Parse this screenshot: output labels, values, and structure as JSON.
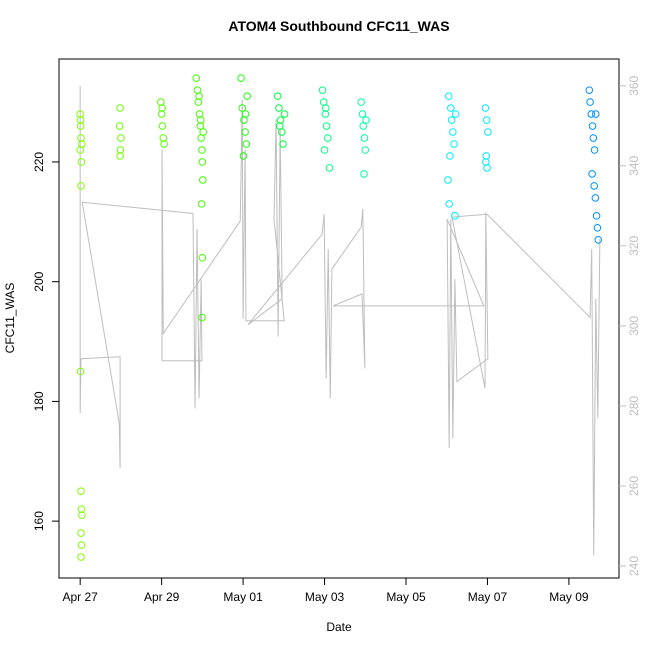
{
  "chart_data": {
    "type": "scatter",
    "title": "ATOM4 Southbound CFC11_WAS",
    "x_label": "Date",
    "y_label": "CFC11_WAS",
    "xlim": [
      -0.52,
      13.23
    ],
    "ylim": [
      150.5,
      237.2
    ],
    "y2lim": [
      237,
      366.7
    ],
    "xticks": [
      {
        "value": 0,
        "label": "Apr 27"
      },
      {
        "value": 2,
        "label": "Apr 29"
      },
      {
        "value": 4,
        "label": "May 01"
      },
      {
        "value": 6,
        "label": "May 03"
      },
      {
        "value": 8,
        "label": "May 05"
      },
      {
        "value": 10,
        "label": "May 07"
      },
      {
        "value": 12,
        "label": "May 09"
      }
    ],
    "yticks": [
      160,
      180,
      200,
      220
    ],
    "y2ticks": [
      240,
      260,
      280,
      300,
      320,
      340,
      360
    ],
    "y2_color": "#bebebe",
    "series": [
      {
        "type": "line",
        "axis": "y2",
        "color": "#bebebe",
        "x": [
          0,
          0,
          0.02,
          0.98,
          0.98,
          0.96,
          0.05,
          2.77,
          2.82,
          2.87,
          2.92,
          2.97,
          2.99,
          2.01,
          2.01,
          2.04,
          3.93,
          3.98,
          4.0,
          4.05,
          4.07,
          5.01,
          4.76,
          4.81,
          4.86,
          4.91,
          4.96,
          4.12,
          5.94,
          5.99,
          6.04,
          6.09,
          6.14,
          6.18,
          6.9,
          6.94,
          6.99,
          6.92,
          6.21,
          9.91,
          9.01,
          9.06,
          9.1,
          9.15,
          9.2,
          9.25,
          10.01,
          9.96,
          9.94,
          9.13,
          9.99,
          12.52,
          12.56,
          12.61,
          12.66,
          12.71,
          12.76
        ],
        "values": [
          360,
          278.2,
          291.8,
          292.3,
          264.5,
          275.6,
          330.9,
          328.1,
          279.4,
          324.2,
          281.9,
          311.7,
          291.3,
          291.3,
          344.1,
          298.1,
          326.2,
          356.5,
          301.8,
          344.1,
          301.3,
          301.3,
          326.7,
          351.5,
          297.3,
          349.1,
          306.8,
          300.3,
          322.9,
          327.9,
          286.9,
          319.2,
          281.9,
          314.2,
          324.7,
          329.2,
          289.4,
          308,
          305,
          305,
          326.7,
          269.5,
          326.7,
          271.9,
          311.7,
          286.1,
          291.8,
          328.4,
          284.4,
          327.2,
          327.9,
          302.1,
          319.2,
          242.6,
          306.8,
          276.9,
          321.7
        ]
      },
      {
        "type": "scatter",
        "x": [
          0,
          0.01,
          0.02,
          0,
          0.03,
          0.02,
          0.01,
          0.02,
          0.03,
          0.04,
          0.02,
          0.03,
          0.02,
          0.04,
          0.01,
          0.98,
          0.97,
          1.0,
          0.99,
          0.98,
          1.98,
          2.0,
          2.02,
          2.04,
          2.06,
          2.01,
          2.85,
          2.88,
          2.9,
          2.93,
          2.95,
          2.97,
          2.99,
          3.0,
          3.01,
          2.98,
          3.0,
          2.99,
          2.92,
          2.96,
          3.02,
          3.95,
          4.1,
          3.98,
          4.02,
          4.05,
          4.08,
          4.01,
          4.06,
          4.85,
          4.88,
          4.92,
          4.95,
          4.98,
          5.02,
          4.9,
          5.95,
          5.98,
          6.02,
          6.05,
          6.08,
          6.0,
          6.12,
          6.03,
          6.9,
          6.93,
          6.95,
          6.98,
          7.0,
          6.97,
          7.02,
          9.05,
          9.1,
          9.12,
          9.15,
          9.18,
          9.08,
          9.03,
          9.06,
          9.2,
          9.22,
          9.95,
          9.98,
          10.01,
          9.97,
          9.96,
          9.99,
          12.5,
          12.52,
          12.55,
          12.58,
          12.6,
          12.63,
          12.57,
          12.62,
          12.65,
          12.68,
          12.7,
          12.72,
          12.66
        ],
        "values": [
          228,
          226,
          224,
          222,
          220,
          216,
          185,
          165,
          162,
          161,
          158,
          156,
          154,
          223,
          227,
          229,
          226,
          224,
          222,
          221,
          230,
          228,
          226,
          224,
          223,
          229,
          234,
          232,
          230,
          228,
          226,
          224,
          222,
          220,
          217,
          213,
          204,
          194,
          231,
          227,
          225,
          234,
          231,
          229,
          227,
          225,
          223,
          221,
          228,
          231,
          229,
          227,
          225,
          223,
          228,
          226,
          232,
          230,
          228,
          226,
          224,
          222,
          219,
          229,
          230,
          228,
          226,
          224,
          222,
          218,
          227,
          231,
          229,
          227,
          225,
          223,
          221,
          217,
          213,
          211,
          228,
          229,
          227,
          225,
          221,
          220,
          219,
          232,
          230,
          228,
          226,
          224,
          222,
          218,
          216,
          214,
          211,
          209,
          207,
          228
        ],
        "colors": [
          "#80ff00",
          "#80ff00",
          "#80ff00",
          "#80ff00",
          "#80ff00",
          "#80ff00",
          "#80ff00",
          "#80ff00",
          "#80ff00",
          "#80ff00",
          "#80ff00",
          "#80ff00",
          "#80ff00",
          "#80ff00",
          "#80ff00",
          "#70ff00",
          "#70ff00",
          "#70ff00",
          "#70ff00",
          "#70ff00",
          "#55ff00",
          "#55ff00",
          "#55ff00",
          "#55ff00",
          "#55ff00",
          "#55ff00",
          "#40ff00",
          "#40ff00",
          "#40ff00",
          "#40ff00",
          "#40ff00",
          "#40ff00",
          "#40ff00",
          "#40ff00",
          "#40ff00",
          "#40ff00",
          "#40ff00",
          "#40ff00",
          "#40ff00",
          "#40ff00",
          "#40ff00",
          "#20ff10",
          "#20ff10",
          "#20ff10",
          "#20ff10",
          "#20ff10",
          "#20ff10",
          "#20ff10",
          "#20ff10",
          "#00ff40",
          "#00ff40",
          "#00ff40",
          "#00ff40",
          "#00ff40",
          "#00ff40",
          "#00ff40",
          "#00ff80",
          "#00ff80",
          "#00ff80",
          "#00ff80",
          "#00ff80",
          "#00ff80",
          "#00ff80",
          "#00ff80",
          "#00ffa0",
          "#00ffa0",
          "#00ffa0",
          "#00ffa0",
          "#00ffa0",
          "#00ffa0",
          "#00ffa0",
          "#00f0ff",
          "#00f0ff",
          "#00f0ff",
          "#00f0ff",
          "#00f0ff",
          "#00f0ff",
          "#00f0ff",
          "#00f0ff",
          "#00f0ff",
          "#00f0ff",
          "#00e8ff",
          "#00e8ff",
          "#00e8ff",
          "#00e8ff",
          "#00e8ff",
          "#00e8ff",
          "#0090ff",
          "#0090ff",
          "#0090ff",
          "#0090ff",
          "#0090ff",
          "#0090ff",
          "#0090ff",
          "#0090ff",
          "#0090ff",
          "#0090ff",
          "#0090ff",
          "#0090ff",
          "#0090ff"
        ]
      }
    ]
  }
}
